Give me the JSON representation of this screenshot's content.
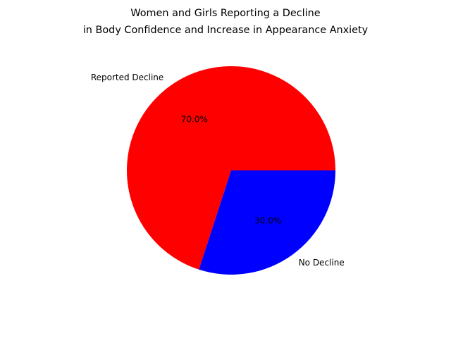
{
  "chart_data": {
    "type": "pie",
    "title_lines": [
      "Women and Girls Reporting a Decline",
      "in Body Confidence and Increase in Appearance Anxiety"
    ],
    "slices": [
      {
        "label": "Reported Decline",
        "value": 70.0,
        "pct_label": "70.0%",
        "color": "#ff0000"
      },
      {
        "label": "No Decline",
        "value": 30.0,
        "pct_label": "30.0%",
        "color": "#0000ff"
      }
    ],
    "start_angle_deg": 0,
    "direction": "counterclockwise",
    "legend": "none"
  }
}
